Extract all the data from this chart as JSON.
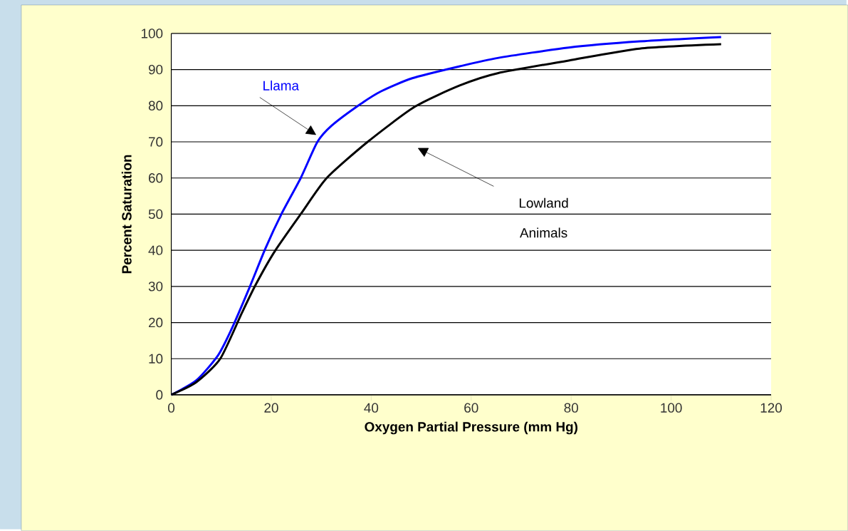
{
  "chart_data": {
    "type": "line",
    "xlabel": "Oxygen Partial Pressure (mm Hg)",
    "ylabel": "Percent Saturation",
    "xlim": [
      0,
      120
    ],
    "xticks": [
      0,
      20,
      40,
      60,
      80,
      100,
      120
    ],
    "ylim": [
      0,
      100
    ],
    "yticks": [
      0,
      10,
      20,
      30,
      40,
      50,
      60,
      70,
      80,
      90,
      100
    ],
    "grid": "y",
    "legend": false,
    "marker": "none",
    "line_style": "solid",
    "series": [
      {
        "name": "Llama",
        "color": "#0000ff",
        "x": [
          0,
          5,
          9.3,
          12,
          15.5,
          18.8,
          22.1,
          25.9,
          29.2,
          32.1,
          37.8,
          42,
          48.2,
          57.7,
          65.3,
          79.5,
          93.7,
          110
        ],
        "values": [
          0,
          4,
          10.8,
          18,
          29.2,
          40.4,
          50.2,
          60,
          69.9,
          74.5,
          80.4,
          84,
          87.6,
          90.9,
          93.2,
          96.1,
          97.8,
          99
        ]
      },
      {
        "name": "Lowland Animals",
        "color": "#000000",
        "x": [
          0,
          5,
          9.8,
          14.1,
          16.9,
          20.7,
          26,
          31.1,
          39.2,
          48.7,
          57.7,
          65.3,
          79.5,
          93.7,
          110
        ],
        "values": [
          0,
          3.5,
          10,
          22.6,
          30.5,
          39.7,
          50.2,
          60,
          69.9,
          79.7,
          85.6,
          89,
          92.5,
          95.8,
          97
        ]
      }
    ]
  }
}
